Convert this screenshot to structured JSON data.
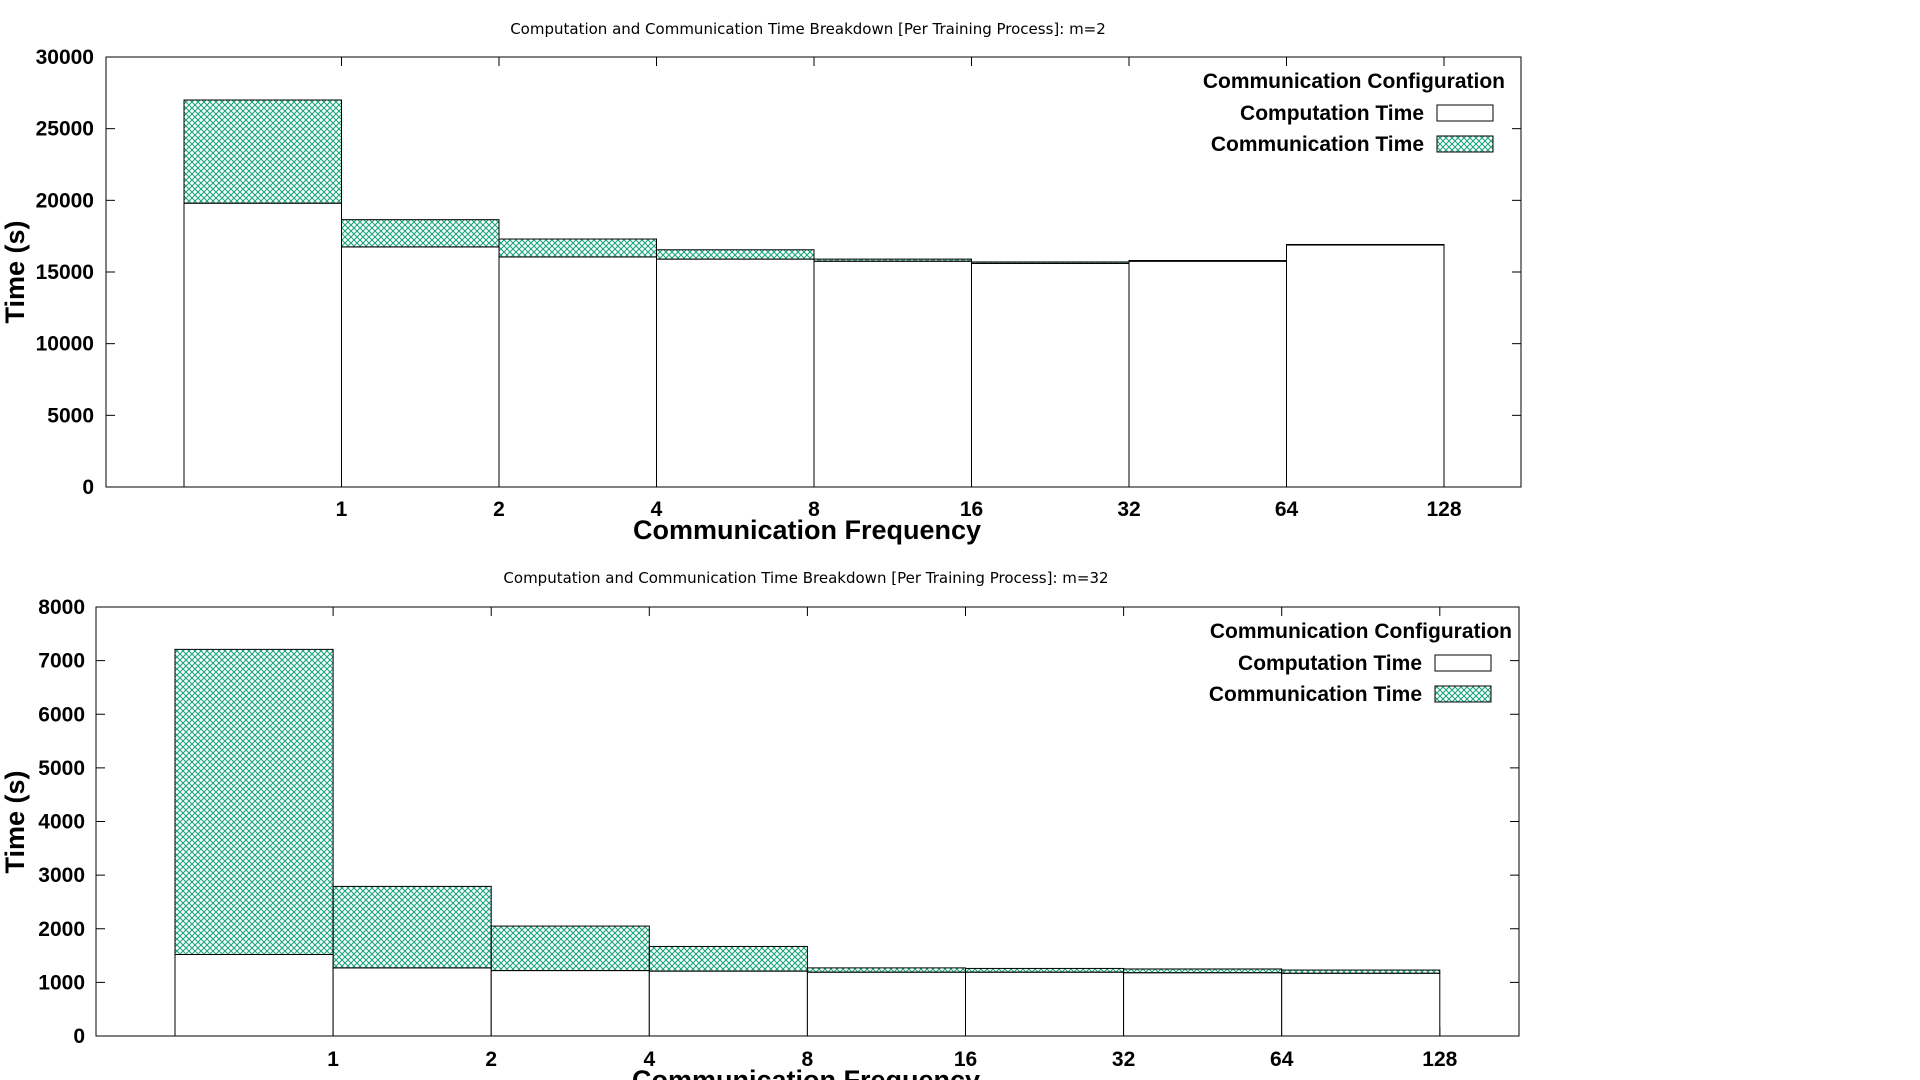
{
  "colors": {
    "communication_hatch": "#1aa37a",
    "computation_fill": "#ffffff",
    "stroke": "#000000"
  },
  "chart_data": [
    {
      "type": "bar",
      "stacked": true,
      "title": "Computation and Communication Time Breakdown [Per Training Process]: m=2",
      "xlabel": "Communication Frequency",
      "ylabel": "Time (s)",
      "x_tick_labels": [
        "1",
        "2",
        "4",
        "8",
        "16",
        "32",
        "64",
        "128"
      ],
      "ylim": [
        0,
        30000
      ],
      "y_ticks": [
        0,
        5000,
        10000,
        15000,
        20000,
        25000,
        30000
      ],
      "legend_title": "Communication Configuration",
      "legend_position": "top-right",
      "series": [
        {
          "name": "Computation Time",
          "values": [
            19800,
            16750,
            16050,
            15900,
            15750,
            15600,
            15750,
            16900
          ]
        },
        {
          "name": "Communication Time",
          "values": [
            7200,
            1900,
            1250,
            650,
            150,
            100,
            50,
            20
          ]
        }
      ]
    },
    {
      "type": "bar",
      "stacked": true,
      "title": "Computation and Communication Time Breakdown [Per Training Process]: m=32",
      "xlabel": "Communication Frequency",
      "ylabel": "Time (s)",
      "x_tick_labels": [
        "1",
        "2",
        "4",
        "8",
        "16",
        "32",
        "64",
        "128"
      ],
      "ylim": [
        0,
        8000
      ],
      "y_ticks": [
        0,
        1000,
        2000,
        3000,
        4000,
        5000,
        6000,
        7000,
        8000
      ],
      "legend_title": "Communication Configuration",
      "legend_position": "top-right",
      "series": [
        {
          "name": "Computation Time",
          "values": [
            1520,
            1270,
            1220,
            1210,
            1190,
            1190,
            1180,
            1170
          ]
        },
        {
          "name": "Communication Time",
          "values": [
            5690,
            1520,
            830,
            460,
            80,
            70,
            70,
            60
          ]
        }
      ]
    }
  ]
}
